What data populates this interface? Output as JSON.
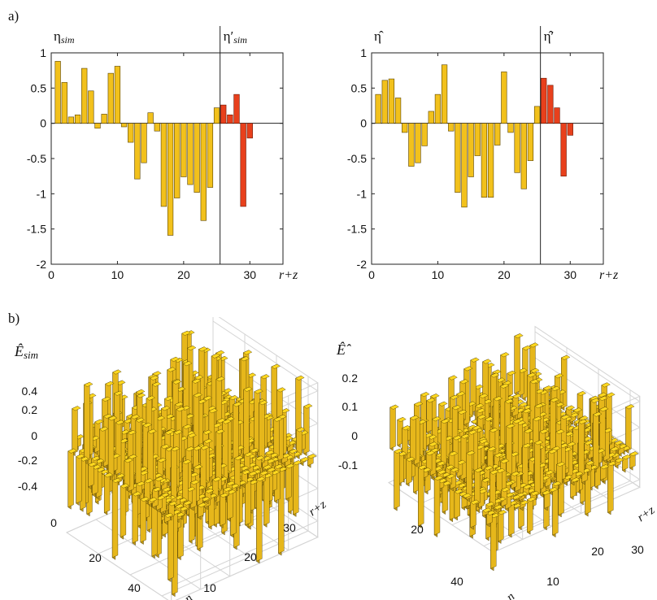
{
  "panels": {
    "a_label": "a)",
    "b_label": "b)"
  },
  "chart_data": [
    {
      "type": "bar",
      "panel": "a-left",
      "title_main": "η",
      "title_sub": "sim",
      "title2_main": "η′",
      "title2_sub": "sim",
      "xlabel": "r+z",
      "xlim": [
        0,
        35
      ],
      "ylim": [
        -2,
        1
      ],
      "xticks": [
        0,
        10,
        20,
        30
      ],
      "yticks": [
        1,
        0.5,
        0,
        -0.5,
        -1,
        -1.5,
        -2
      ],
      "divider_x": 25.5,
      "colors": {
        "main": "#F2C11C",
        "prime": "#E8401C"
      },
      "series": [
        {
          "values": [
            0.88,
            0.58,
            0.09,
            0.12,
            0.78,
            0.46,
            -0.07,
            0.13,
            0.71,
            0.81,
            -0.05,
            -0.27,
            -0.79,
            -0.56,
            0.15,
            -0.11,
            -1.18,
            -1.59,
            -1.06,
            -0.76,
            -0.87,
            -0.98,
            -1.38,
            -0.91,
            0.22
          ]
        },
        {
          "values": [
            0.26,
            0.12,
            0.41,
            -1.18,
            -0.21
          ]
        }
      ]
    },
    {
      "type": "bar",
      "panel": "a-right",
      "title_main": "η̂",
      "title2_main": "η̂′",
      "xlabel": "r+z",
      "xlim": [
        0,
        35
      ],
      "ylim": [
        -2,
        1
      ],
      "xticks": [
        0,
        10,
        20,
        30
      ],
      "yticks": [
        1,
        0.5,
        0,
        -0.5,
        -1,
        -1.5,
        -2
      ],
      "divider_x": 25.5,
      "colors": {
        "main": "#F2C11C",
        "prime": "#E8401C"
      },
      "series": [
        {
          "values": [
            0.41,
            0.61,
            0.63,
            0.36,
            -0.13,
            -0.61,
            -0.56,
            -0.32,
            0.17,
            0.41,
            0.83,
            -0.11,
            -0.98,
            -1.19,
            -0.76,
            -0.46,
            -1.05,
            -1.05,
            -0.31,
            0.73,
            -0.13,
            -0.7,
            -0.93,
            -0.53,
            0.24
          ]
        },
        {
          "values": [
            0.64,
            0.54,
            0.22,
            -0.75,
            -0.17
          ]
        }
      ]
    },
    {
      "type": "3d-bar",
      "panel": "b-left",
      "title": "Ê",
      "title_sub": "sim",
      "zticks": [
        "0.4",
        "0.2",
        "0",
        "-0.2",
        "-0.4"
      ],
      "n_ticks": [
        "0",
        "20",
        "40"
      ],
      "rz_ticks": [
        "10",
        "20",
        "30"
      ],
      "n_label": "n",
      "rz_label": "r+z"
    },
    {
      "type": "3d-bar",
      "panel": "b-right",
      "title": "Ê̂",
      "zticks": [
        "0.2",
        "0.1",
        "0",
        "-0.1"
      ],
      "n_ticks": [
        "20",
        "40"
      ],
      "rz_ticks": [
        "10",
        "20",
        "30"
      ],
      "n_label": "n",
      "rz_label": "r+z"
    }
  ]
}
